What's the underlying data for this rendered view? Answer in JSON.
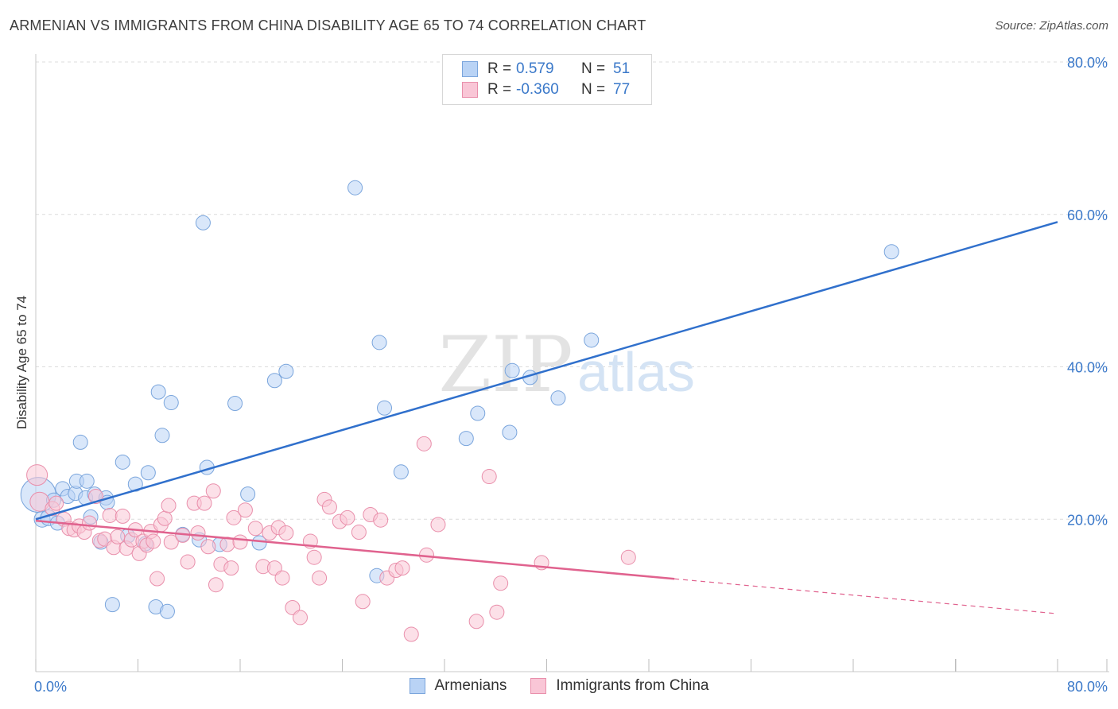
{
  "title": "ARMENIAN VS IMMIGRANTS FROM CHINA DISABILITY AGE 65 TO 74 CORRELATION CHART",
  "source": "Source: ZipAtlas.com",
  "watermark": {
    "zip": "ZIP",
    "atlas": "atlas"
  },
  "legend": {
    "rows": [
      {
        "r_label": "R =",
        "r_value": "0.579",
        "n_label": "N =",
        "n_value": "51"
      },
      {
        "r_label": "R =",
        "r_value": "-0.360",
        "n_label": "N =",
        "n_value": "77"
      }
    ]
  },
  "bottom_legend": {
    "armenians": "Armenians",
    "china": "Immigrants from China"
  },
  "colors": {
    "armenians_fill": "#b9d3f5",
    "armenians_stroke": "#7aa5dc",
    "armenians_line": "#3070cc",
    "china_fill": "#f9c6d6",
    "china_stroke": "#e98fab",
    "china_line": "#e0628e",
    "axis_text": "#3a78c9"
  },
  "chart_data": {
    "type": "scatter",
    "title": "ARMENIAN VS IMMIGRANTS FROM CHINA DISABILITY AGE 65 TO 74 CORRELATION CHART",
    "xlabel": "",
    "ylabel": "Disability Age 65 to 74",
    "xlim": [
      0,
      80
    ],
    "ylim": [
      0,
      80
    ],
    "x_tick_labels": [
      "0.0%",
      "80.0%"
    ],
    "y_tick_labels": [
      "20.0%",
      "40.0%",
      "60.0%",
      "80.0%"
    ],
    "y_ticks": [
      20,
      40,
      60,
      80
    ],
    "x_minor_ticks": [
      0,
      8,
      16,
      24,
      32,
      40,
      48,
      56,
      64,
      72,
      80
    ],
    "series": [
      {
        "name": "Armenians",
        "R": 0.579,
        "N": 51,
        "trend": {
          "x": [
            0,
            80
          ],
          "y": [
            20.0,
            59.0
          ],
          "dashed_from": null
        },
        "points": [
          [
            0.2,
            23.2,
            22
          ],
          [
            0.5,
            20.0,
            10
          ],
          [
            1.0,
            20.2,
            10
          ],
          [
            1.4,
            22.5,
            9
          ],
          [
            1.7,
            19.5,
            9
          ],
          [
            2.1,
            24.0,
            9
          ],
          [
            2.5,
            23.0,
            9
          ],
          [
            3.1,
            23.4,
            9
          ],
          [
            3.2,
            25.0,
            9
          ],
          [
            3.5,
            30.1,
            9
          ],
          [
            3.9,
            22.8,
            9
          ],
          [
            4.0,
            25.0,
            9
          ],
          [
            4.3,
            20.3,
            9
          ],
          [
            4.6,
            23.3,
            9
          ],
          [
            5.1,
            17.0,
            9
          ],
          [
            5.5,
            22.8,
            9
          ],
          [
            5.6,
            22.2,
            9
          ],
          [
            6.0,
            8.8,
            9
          ],
          [
            6.8,
            27.5,
            9
          ],
          [
            7.2,
            17.8,
            9
          ],
          [
            7.8,
            24.6,
            9
          ],
          [
            8.6,
            16.8,
            9
          ],
          [
            8.8,
            26.1,
            9
          ],
          [
            9.4,
            8.5,
            9
          ],
          [
            9.6,
            36.7,
            9
          ],
          [
            9.9,
            31.0,
            9
          ],
          [
            10.3,
            7.9,
            9
          ],
          [
            10.6,
            35.3,
            9
          ],
          [
            11.5,
            18.0,
            9
          ],
          [
            12.8,
            17.3,
            9
          ],
          [
            13.1,
            58.9,
            9
          ],
          [
            13.4,
            26.8,
            9
          ],
          [
            14.4,
            16.7,
            9
          ],
          [
            15.6,
            35.2,
            9
          ],
          [
            16.6,
            23.3,
            9
          ],
          [
            17.5,
            16.9,
            9
          ],
          [
            18.7,
            38.2,
            9
          ],
          [
            19.6,
            39.4,
            9
          ],
          [
            25.0,
            63.5,
            9
          ],
          [
            26.7,
            12.6,
            9
          ],
          [
            26.9,
            43.2,
            9
          ],
          [
            27.3,
            34.6,
            9
          ],
          [
            28.6,
            26.2,
            9
          ],
          [
            33.7,
            30.6,
            9
          ],
          [
            34.6,
            33.9,
            9
          ],
          [
            37.1,
            31.4,
            9
          ],
          [
            37.3,
            39.5,
            9
          ],
          [
            38.7,
            38.6,
            9
          ],
          [
            40.9,
            35.9,
            9
          ],
          [
            43.5,
            43.5,
            9
          ],
          [
            67.0,
            55.1,
            9
          ]
        ]
      },
      {
        "name": "Immigrants from China",
        "R": -0.36,
        "N": 77,
        "trend": {
          "x": [
            0,
            80
          ],
          "y": [
            19.8,
            7.6
          ],
          "dashed_from": 50
        },
        "points": [
          [
            0.1,
            25.8,
            13
          ],
          [
            0.3,
            22.3,
            12
          ],
          [
            1.3,
            21.4,
            9
          ],
          [
            1.6,
            22.1,
            9
          ],
          [
            2.2,
            20.0,
            9
          ],
          [
            2.6,
            18.8,
            9
          ],
          [
            3.0,
            18.6,
            9
          ],
          [
            3.4,
            19.1,
            9
          ],
          [
            3.8,
            18.3,
            9
          ],
          [
            4.2,
            19.5,
            9
          ],
          [
            4.7,
            23.0,
            9
          ],
          [
            5.0,
            17.2,
            9
          ],
          [
            5.4,
            17.4,
            9
          ],
          [
            5.8,
            20.5,
            9
          ],
          [
            6.1,
            16.3,
            9
          ],
          [
            6.4,
            17.7,
            9
          ],
          [
            6.8,
            20.4,
            9
          ],
          [
            7.1,
            16.2,
            9
          ],
          [
            7.5,
            17.3,
            9
          ],
          [
            7.8,
            18.6,
            9
          ],
          [
            8.1,
            15.5,
            9
          ],
          [
            8.4,
            17.1,
            9
          ],
          [
            8.7,
            16.6,
            9
          ],
          [
            9.0,
            18.4,
            9
          ],
          [
            9.2,
            17.1,
            9
          ],
          [
            9.5,
            12.2,
            9
          ],
          [
            9.8,
            19.3,
            9
          ],
          [
            10.1,
            20.1,
            9
          ],
          [
            10.4,
            21.8,
            9
          ],
          [
            10.6,
            17.0,
            9
          ],
          [
            11.5,
            17.9,
            9
          ],
          [
            11.9,
            14.4,
            9
          ],
          [
            12.4,
            22.1,
            9
          ],
          [
            12.7,
            18.2,
            9
          ],
          [
            13.2,
            22.1,
            9
          ],
          [
            13.5,
            16.4,
            9
          ],
          [
            13.9,
            23.7,
            9
          ],
          [
            14.1,
            11.4,
            9
          ],
          [
            14.5,
            14.1,
            9
          ],
          [
            15.0,
            16.7,
            9
          ],
          [
            15.3,
            13.6,
            9
          ],
          [
            15.5,
            20.2,
            9
          ],
          [
            16.0,
            17.0,
            9
          ],
          [
            16.4,
            21.2,
            9
          ],
          [
            17.2,
            18.8,
            9
          ],
          [
            17.8,
            13.8,
            9
          ],
          [
            18.3,
            18.2,
            9
          ],
          [
            18.7,
            13.6,
            9
          ],
          [
            19.0,
            18.9,
            9
          ],
          [
            19.3,
            12.3,
            9
          ],
          [
            19.6,
            18.2,
            9
          ],
          [
            20.1,
            8.4,
            9
          ],
          [
            20.7,
            7.1,
            9
          ],
          [
            21.5,
            17.1,
            9
          ],
          [
            21.8,
            15.0,
            9
          ],
          [
            22.2,
            12.3,
            9
          ],
          [
            22.6,
            22.6,
            9
          ],
          [
            23.0,
            21.6,
            9
          ],
          [
            23.8,
            19.7,
            9
          ],
          [
            24.4,
            20.2,
            9
          ],
          [
            25.3,
            18.3,
            9
          ],
          [
            25.6,
            9.2,
            9
          ],
          [
            26.2,
            20.6,
            9
          ],
          [
            27.0,
            19.9,
            9
          ],
          [
            27.5,
            12.3,
            9
          ],
          [
            28.2,
            13.3,
            9
          ],
          [
            28.7,
            13.6,
            9
          ],
          [
            29.4,
            4.9,
            9
          ],
          [
            30.4,
            29.9,
            9
          ],
          [
            30.6,
            15.3,
            9
          ],
          [
            31.5,
            19.3,
            9
          ],
          [
            34.5,
            6.6,
            9
          ],
          [
            35.5,
            25.6,
            9
          ],
          [
            36.1,
            7.8,
            9
          ],
          [
            36.4,
            11.6,
            9
          ],
          [
            39.6,
            14.3,
            9
          ],
          [
            46.4,
            15.0,
            9
          ]
        ]
      }
    ]
  }
}
